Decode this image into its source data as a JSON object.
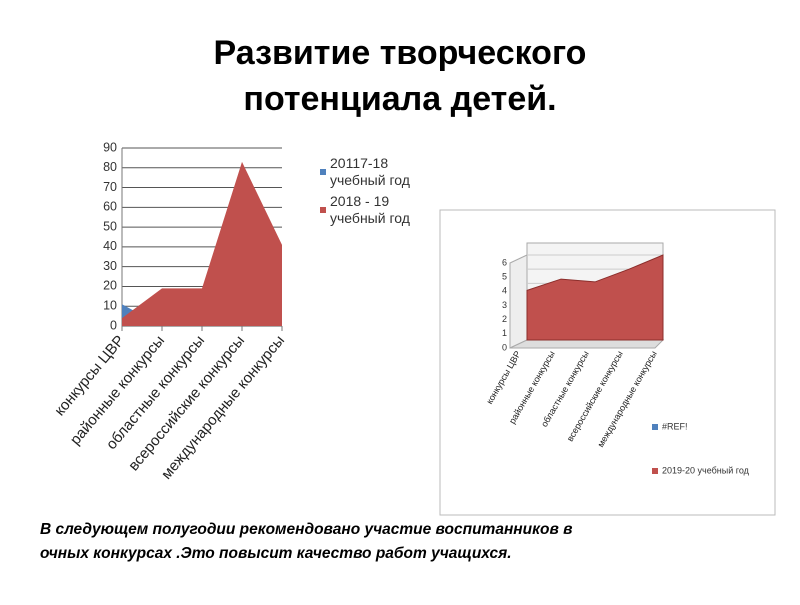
{
  "title": "Развитие творческого потенциала детей.",
  "note": "В следующем полугодии рекомендовано участие воспитанников в очных конкурсах .Это повысит качество работ учащихся.",
  "chart_data": [
    {
      "type": "area",
      "categories": [
        "конкурсы ЦВР",
        "районные конкурсы",
        "областные конкурсы",
        "всероссийские конкурсы",
        "международные конкурсы"
      ],
      "series": [
        {
          "name": "20117-18 учебный год",
          "color": "#4f81bd",
          "values": [
            11,
            0,
            0,
            0,
            0
          ]
        },
        {
          "name": "2018 - 19 учебный год",
          "color": "#c0504d",
          "values": [
            4,
            19,
            19,
            83,
            41
          ]
        }
      ],
      "ylim": [
        0,
        90
      ],
      "yticks": [
        0,
        10,
        20,
        30,
        40,
        50,
        60,
        70,
        80,
        90
      ],
      "grid": true,
      "legend": "right"
    },
    {
      "type": "area3d",
      "categories": [
        "конкурсы ЦВР",
        "районные конкурсы",
        "областные конкурсы",
        "всероссийские конкурсы",
        "международные конкурсы"
      ],
      "series": [
        {
          "name": "#REF!",
          "color": "#4f81bd",
          "values": [
            null,
            null,
            null,
            null,
            null
          ]
        },
        {
          "name": "2019-20 учебный год",
          "color": "#c0504d",
          "values": [
            3.5,
            4.3,
            4.1,
            5,
            6
          ]
        }
      ],
      "ylim": [
        0,
        6
      ],
      "yticks": [
        0,
        1,
        2,
        3,
        4,
        5,
        6
      ],
      "grid": true,
      "legend": "bottom-right"
    }
  ]
}
